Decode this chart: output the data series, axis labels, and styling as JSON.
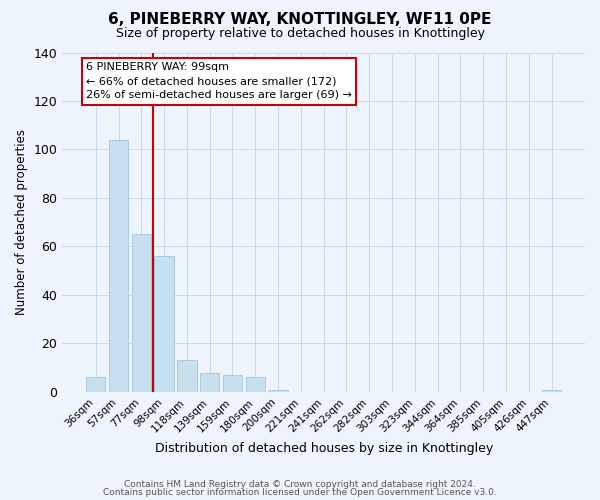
{
  "title": "6, PINEBERRY WAY, KNOTTINGLEY, WF11 0PE",
  "subtitle": "Size of property relative to detached houses in Knottingley",
  "xlabel": "Distribution of detached houses by size in Knottingley",
  "ylabel": "Number of detached properties",
  "bar_labels": [
    "36sqm",
    "57sqm",
    "77sqm",
    "98sqm",
    "118sqm",
    "139sqm",
    "159sqm",
    "180sqm",
    "200sqm",
    "221sqm",
    "241sqm",
    "262sqm",
    "282sqm",
    "303sqm",
    "323sqm",
    "344sqm",
    "364sqm",
    "385sqm",
    "405sqm",
    "426sqm",
    "447sqm"
  ],
  "bar_values": [
    6,
    104,
    65,
    56,
    13,
    8,
    7,
    6,
    1,
    0,
    0,
    0,
    0,
    0,
    0,
    0,
    0,
    0,
    0,
    0,
    1
  ],
  "bar_color": "#c8dff0",
  "bar_edgecolor": "#a0c4e0",
  "vline_x": 2.5,
  "vline_color": "#c8000a",
  "annotation_title": "6 PINEBERRY WAY: 99sqm",
  "annotation_line1": "← 66% of detached houses are smaller (172)",
  "annotation_line2": "26% of semi-detached houses are larger (69) →",
  "annotation_box_edgecolor": "#c8000a",
  "annotation_box_facecolor": "#ffffff",
  "ylim": [
    0,
    140
  ],
  "yticks": [
    0,
    20,
    40,
    60,
    80,
    100,
    120,
    140
  ],
  "footer1": "Contains HM Land Registry data © Crown copyright and database right 2024.",
  "footer2": "Contains public sector information licensed under the Open Government Licence v3.0.",
  "bg_color": "#eef4fb",
  "plot_bg_color": "#eef4fb",
  "grid_color": "#c5d8ec"
}
